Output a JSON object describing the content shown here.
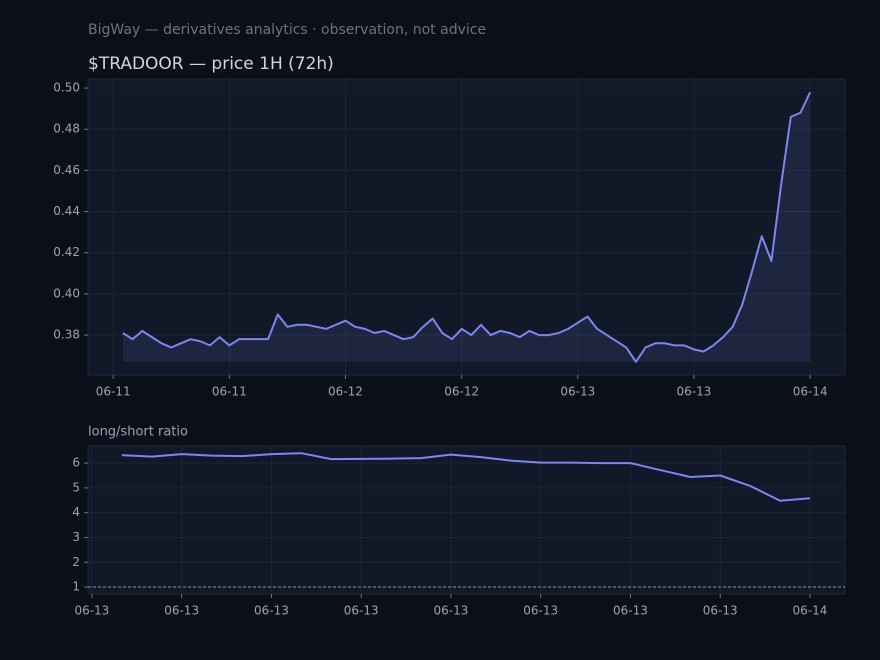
{
  "header": "BigWay — derivatives analytics · observation, not advice",
  "chart_data": [
    {
      "type": "line",
      "title": "$TRADOOR — price 1H (72h)",
      "x": [
        0,
        1,
        2,
        3,
        4,
        5,
        6,
        7,
        8,
        9,
        10,
        11,
        12,
        13,
        14,
        15,
        16,
        17,
        18,
        19,
        20,
        21,
        22,
        23,
        24,
        25,
        26,
        27,
        28,
        29,
        30,
        31,
        32,
        33,
        34,
        35,
        36,
        37,
        38,
        39,
        40,
        41,
        42,
        43,
        44,
        45,
        46,
        47,
        48,
        49,
        50,
        51,
        52,
        53,
        54,
        55,
        56,
        57,
        58,
        59,
        60,
        61,
        62,
        63,
        64,
        65,
        66,
        67,
        68,
        69,
        70,
        71
      ],
      "series": [
        {
          "color": "#7b86f0",
          "values": [
            0.381,
            0.378,
            0.382,
            0.379,
            0.376,
            0.374,
            0.376,
            0.378,
            0.377,
            0.375,
            0.379,
            0.375,
            0.378,
            0.378,
            0.378,
            0.378,
            0.39,
            0.384,
            0.385,
            0.385,
            0.384,
            0.383,
            0.385,
            0.387,
            0.384,
            0.383,
            0.381,
            0.382,
            0.38,
            0.378,
            0.379,
            0.384,
            0.388,
            0.381,
            0.378,
            0.383,
            0.38,
            0.385,
            0.38,
            0.382,
            0.381,
            0.379,
            0.382,
            0.38,
            0.38,
            0.381,
            0.383,
            0.386,
            0.389,
            0.383,
            0.38,
            0.377,
            0.374,
            0.367,
            0.374,
            0.376,
            0.376,
            0.375,
            0.375,
            0.373,
            0.372,
            0.375,
            0.379,
            0.384,
            0.395,
            0.411,
            0.428,
            0.416,
            0.453,
            0.486,
            0.488,
            0.498
          ]
        }
      ],
      "xlim": [
        -3.6,
        74.6
      ],
      "ylim": [
        0.3606,
        0.5044
      ],
      "xticks": [
        {
          "value": -1,
          "label": "06-11"
        },
        {
          "value": 11,
          "label": "06-11"
        },
        {
          "value": 23,
          "label": "06-12"
        },
        {
          "value": 35,
          "label": "06-12"
        },
        {
          "value": 47,
          "label": "06-13"
        },
        {
          "value": 59,
          "label": "06-13"
        },
        {
          "value": 71,
          "label": "06-14"
        }
      ],
      "yticks": [
        {
          "value": 0.38,
          "label": "0.38"
        },
        {
          "value": 0.4,
          "label": "0.40"
        },
        {
          "value": 0.42,
          "label": "0.42"
        },
        {
          "value": 0.44,
          "label": "0.44"
        },
        {
          "value": 0.46,
          "label": "0.46"
        },
        {
          "value": 0.48,
          "label": "0.48"
        },
        {
          "value": 0.5,
          "label": "0.50"
        }
      ],
      "grid": true,
      "fill": true
    },
    {
      "type": "line",
      "title": "long/short ratio",
      "x": [
        1,
        2,
        3,
        4,
        5,
        6,
        7,
        8,
        9,
        10,
        11,
        12,
        13,
        14,
        15,
        16,
        17,
        18,
        19,
        20,
        21,
        22,
        23,
        24
      ],
      "series": [
        {
          "color": "#7b86f0",
          "values": [
            6.32,
            6.26,
            6.36,
            6.3,
            6.28,
            6.36,
            6.4,
            6.16,
            6.17,
            6.18,
            6.2,
            6.34,
            6.24,
            6.1,
            6.02,
            6.02,
            6.0,
            6.0,
            5.72,
            5.44,
            5.5,
            5.08,
            4.48,
            4.58
          ]
        }
      ],
      "xlim": [
        -0.13,
        25.17
      ],
      "ylim": [
        0.72,
        6.69
      ],
      "xticks": [
        {
          "value": 0,
          "label": "06-13"
        },
        {
          "value": 3,
          "label": "06-13"
        },
        {
          "value": 6,
          "label": "06-13"
        },
        {
          "value": 9,
          "label": "06-13"
        },
        {
          "value": 12,
          "label": "06-13"
        },
        {
          "value": 15,
          "label": "06-13"
        },
        {
          "value": 18,
          "label": "06-13"
        },
        {
          "value": 21,
          "label": "06-13"
        },
        {
          "value": 24,
          "label": "06-14"
        }
      ],
      "yticks": [
        1,
        2,
        3,
        4,
        5,
        6
      ],
      "grid": true,
      "fill": false,
      "hline": 1
    }
  ]
}
